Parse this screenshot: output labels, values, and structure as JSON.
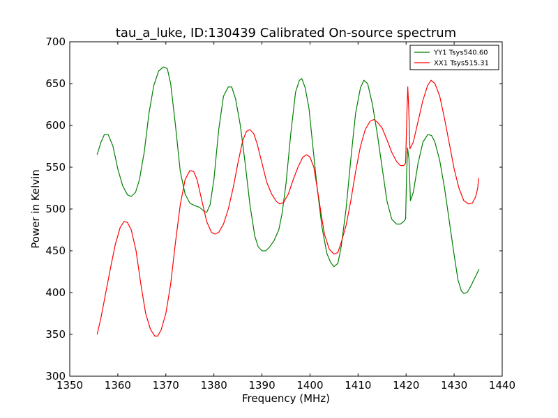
{
  "chart_data": {
    "type": "line",
    "title": "tau_a_luke, ID:130439 Calibrated On-source spectrum",
    "xlabel": "Frequency (MHz)",
    "ylabel": "Power in Kelvin",
    "xlim": [
      1350,
      1440
    ],
    "ylim": [
      300,
      700
    ],
    "xticks": [
      1350,
      1360,
      1370,
      1380,
      1390,
      1400,
      1410,
      1420,
      1430,
      1440
    ],
    "yticks": [
      300,
      350,
      400,
      450,
      500,
      550,
      600,
      650,
      700
    ],
    "grid": false,
    "legend_position": "top-right",
    "series": [
      {
        "name": "YY1 Tsys540.60",
        "color": "#008000",
        "points": [
          [
            1355.7,
            565
          ],
          [
            1356.5,
            580
          ],
          [
            1357.2,
            589
          ],
          [
            1358.0,
            589
          ],
          [
            1359.0,
            575
          ],
          [
            1360.0,
            548
          ],
          [
            1361.0,
            528
          ],
          [
            1362.0,
            517
          ],
          [
            1362.8,
            515
          ],
          [
            1363.7,
            520
          ],
          [
            1364.5,
            535
          ],
          [
            1365.5,
            568
          ],
          [
            1366.5,
            615
          ],
          [
            1367.5,
            648
          ],
          [
            1368.5,
            665
          ],
          [
            1369.5,
            670
          ],
          [
            1370.3,
            668
          ],
          [
            1371.0,
            650
          ],
          [
            1372.0,
            600
          ],
          [
            1373.0,
            545
          ],
          [
            1374.0,
            518
          ],
          [
            1375.0,
            507
          ],
          [
            1376.0,
            504
          ],
          [
            1377.0,
            502
          ],
          [
            1378.0,
            497
          ],
          [
            1378.5,
            496
          ],
          [
            1379.2,
            505
          ],
          [
            1380.0,
            535
          ],
          [
            1381.0,
            595
          ],
          [
            1382.0,
            635
          ],
          [
            1383.0,
            646
          ],
          [
            1383.7,
            646
          ],
          [
            1384.5,
            632
          ],
          [
            1385.5,
            600
          ],
          [
            1386.5,
            555
          ],
          [
            1387.5,
            505
          ],
          [
            1388.5,
            468
          ],
          [
            1389.2,
            455
          ],
          [
            1390.0,
            450
          ],
          [
            1390.8,
            450
          ],
          [
            1391.5,
            454
          ],
          [
            1392.5,
            462
          ],
          [
            1393.5,
            475
          ],
          [
            1394.2,
            495
          ],
          [
            1395.0,
            530
          ],
          [
            1396.0,
            590
          ],
          [
            1397.0,
            640
          ],
          [
            1397.8,
            654
          ],
          [
            1398.3,
            656
          ],
          [
            1399.0,
            645
          ],
          [
            1399.8,
            620
          ],
          [
            1400.5,
            580
          ],
          [
            1401.5,
            525
          ],
          [
            1402.5,
            478
          ],
          [
            1403.5,
            447
          ],
          [
            1404.3,
            436
          ],
          [
            1405.0,
            431
          ],
          [
            1405.8,
            435
          ],
          [
            1406.5,
            455
          ],
          [
            1407.5,
            500
          ],
          [
            1408.5,
            560
          ],
          [
            1409.5,
            615
          ],
          [
            1410.5,
            645
          ],
          [
            1411.2,
            654
          ],
          [
            1412.0,
            650
          ],
          [
            1413.0,
            625
          ],
          [
            1414.0,
            590
          ],
          [
            1415.0,
            550
          ],
          [
            1416.0,
            510
          ],
          [
            1417.0,
            488
          ],
          [
            1418.0,
            482
          ],
          [
            1418.8,
            482
          ],
          [
            1419.5,
            485
          ],
          [
            1419.9,
            488
          ],
          [
            1420.1,
            540
          ],
          [
            1420.3,
            573
          ],
          [
            1420.6,
            560
          ],
          [
            1420.9,
            510
          ],
          [
            1421.5,
            520
          ],
          [
            1422.5,
            555
          ],
          [
            1423.5,
            580
          ],
          [
            1424.5,
            589
          ],
          [
            1425.3,
            588
          ],
          [
            1426.0,
            580
          ],
          [
            1427.0,
            558
          ],
          [
            1428.0,
            525
          ],
          [
            1429.0,
            485
          ],
          [
            1430.0,
            445
          ],
          [
            1430.8,
            415
          ],
          [
            1431.5,
            402
          ],
          [
            1432.0,
            399
          ],
          [
            1432.7,
            400
          ],
          [
            1433.5,
            408
          ],
          [
            1434.5,
            420
          ],
          [
            1435.2,
            428
          ]
        ]
      },
      {
        "name": "XX1 Tsys515.31",
        "color": "#ff0000",
        "points": [
          [
            1355.7,
            350
          ],
          [
            1356.5,
            370
          ],
          [
            1357.5,
            400
          ],
          [
            1358.5,
            430
          ],
          [
            1359.5,
            458
          ],
          [
            1360.5,
            478
          ],
          [
            1361.3,
            485
          ],
          [
            1362.0,
            484
          ],
          [
            1362.8,
            475
          ],
          [
            1363.8,
            450
          ],
          [
            1364.8,
            410
          ],
          [
            1365.8,
            375
          ],
          [
            1366.8,
            356
          ],
          [
            1367.7,
            348
          ],
          [
            1368.3,
            348
          ],
          [
            1369.0,
            355
          ],
          [
            1370.0,
            375
          ],
          [
            1371.0,
            410
          ],
          [
            1372.0,
            460
          ],
          [
            1373.0,
            505
          ],
          [
            1374.0,
            535
          ],
          [
            1375.0,
            546
          ],
          [
            1375.8,
            545
          ],
          [
            1376.5,
            535
          ],
          [
            1377.5,
            510
          ],
          [
            1378.5,
            485
          ],
          [
            1379.5,
            472
          ],
          [
            1380.2,
            470
          ],
          [
            1381.0,
            472
          ],
          [
            1382.0,
            482
          ],
          [
            1383.0,
            500
          ],
          [
            1384.0,
            525
          ],
          [
            1385.0,
            555
          ],
          [
            1386.0,
            582
          ],
          [
            1386.8,
            593
          ],
          [
            1387.5,
            595
          ],
          [
            1388.3,
            590
          ],
          [
            1389.0,
            578
          ],
          [
            1390.0,
            555
          ],
          [
            1391.0,
            532
          ],
          [
            1392.0,
            518
          ],
          [
            1393.0,
            509
          ],
          [
            1393.7,
            506
          ],
          [
            1394.5,
            508
          ],
          [
            1395.5,
            518
          ],
          [
            1396.5,
            535
          ],
          [
            1397.5,
            550
          ],
          [
            1398.5,
            562
          ],
          [
            1399.3,
            565
          ],
          [
            1400.0,
            562
          ],
          [
            1400.8,
            550
          ],
          [
            1401.5,
            525
          ],
          [
            1402.3,
            495
          ],
          [
            1403.0,
            470
          ],
          [
            1404.0,
            452
          ],
          [
            1405.0,
            446
          ],
          [
            1405.8,
            448
          ],
          [
            1406.5,
            460
          ],
          [
            1407.5,
            480
          ],
          [
            1408.5,
            510
          ],
          [
            1409.5,
            545
          ],
          [
            1410.5,
            575
          ],
          [
            1411.5,
            595
          ],
          [
            1412.5,
            605
          ],
          [
            1413.3,
            607
          ],
          [
            1414.0,
            604
          ],
          [
            1415.0,
            597
          ],
          [
            1416.0,
            583
          ],
          [
            1417.0,
            568
          ],
          [
            1418.0,
            557
          ],
          [
            1418.8,
            552
          ],
          [
            1419.5,
            552
          ],
          [
            1419.9,
            555
          ],
          [
            1420.2,
            620
          ],
          [
            1420.35,
            646
          ],
          [
            1420.55,
            620
          ],
          [
            1420.8,
            572
          ],
          [
            1421.5,
            580
          ],
          [
            1422.5,
            605
          ],
          [
            1423.5,
            630
          ],
          [
            1424.5,
            648
          ],
          [
            1425.2,
            654
          ],
          [
            1426.0,
            650
          ],
          [
            1427.0,
            635
          ],
          [
            1428.0,
            608
          ],
          [
            1429.0,
            578
          ],
          [
            1430.0,
            548
          ],
          [
            1431.0,
            525
          ],
          [
            1432.0,
            510
          ],
          [
            1433.0,
            506
          ],
          [
            1433.8,
            507
          ],
          [
            1434.5,
            515
          ],
          [
            1434.9,
            525
          ],
          [
            1435.1,
            537
          ]
        ]
      }
    ]
  }
}
